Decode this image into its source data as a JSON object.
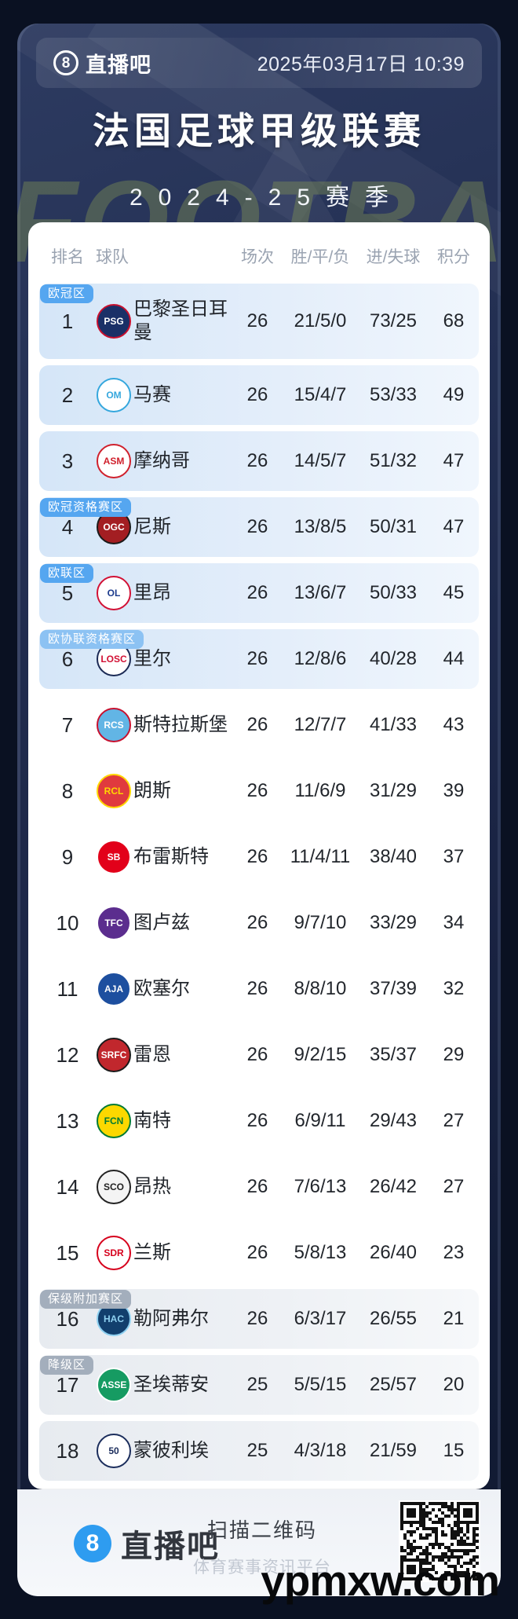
{
  "header": {
    "brand": "直播吧",
    "date": "2025年03月17日 10:39"
  },
  "title": "法国足球甲级联赛",
  "subtitle": "2024-25赛季",
  "decor": {
    "football": "FOOTBALL"
  },
  "site_watermark": "ypmxw.com",
  "colors": {
    "zone_blue": "#55a6f0",
    "zone_lightblue": "#8cc2f3",
    "zone_gray": "#a3aebc",
    "row_blue_tint": "#d5e6f8",
    "row_gray_tint": "#e7ebf0",
    "footer_brand_blue": "#2e9cf0"
  },
  "table": {
    "columns": [
      "排名",
      "球队",
      "场次",
      "胜/平/负",
      "进/失球",
      "积分"
    ],
    "rows": [
      {
        "rank": "1",
        "team": "巴黎圣日耳曼",
        "played": "26",
        "wdl": "21/5/0",
        "goals": "73/25",
        "points": "68",
        "zone": "欧冠区",
        "zone_style": "blue",
        "tint": "blue",
        "tall": true,
        "logo": {
          "text": "PSG",
          "bg": "#1a3067",
          "fg": "#ffffff",
          "ring": "#c8102e"
        }
      },
      {
        "rank": "2",
        "team": "马赛",
        "played": "26",
        "wdl": "15/4/7",
        "goals": "53/33",
        "points": "49",
        "zone": "",
        "zone_style": "",
        "tint": "blue",
        "tall": false,
        "logo": {
          "text": "OM",
          "bg": "#ffffff",
          "fg": "#35a7dd",
          "ring": "#35a7dd"
        }
      },
      {
        "rank": "3",
        "team": "摩纳哥",
        "played": "26",
        "wdl": "14/5/7",
        "goals": "51/32",
        "points": "47",
        "zone": "",
        "zone_style": "",
        "tint": "blue",
        "tall": false,
        "logo": {
          "text": "ASM",
          "bg": "#ffffff",
          "fg": "#d0202c",
          "ring": "#d0202c"
        }
      },
      {
        "rank": "4",
        "team": "尼斯",
        "played": "26",
        "wdl": "13/8/5",
        "goals": "50/31",
        "points": "47",
        "zone": "欧冠资格赛区",
        "zone_style": "blue",
        "tint": "blue",
        "tall": false,
        "logo": {
          "text": "OGC",
          "bg": "#a31e22",
          "fg": "#ffffff",
          "ring": "#1a1a1a"
        }
      },
      {
        "rank": "5",
        "team": "里昂",
        "played": "26",
        "wdl": "13/6/7",
        "goals": "50/33",
        "points": "45",
        "zone": "欧联区",
        "zone_style": "blue",
        "tint": "blue",
        "tall": false,
        "logo": {
          "text": "OL",
          "bg": "#ffffff",
          "fg": "#1b3a8c",
          "ring": "#d21034"
        }
      },
      {
        "rank": "6",
        "team": "里尔",
        "played": "26",
        "wdl": "12/8/6",
        "goals": "40/28",
        "points": "44",
        "zone": "欧协联资格赛区",
        "zone_style": "lightblue",
        "tint": "blue",
        "tall": false,
        "logo": {
          "text": "LOSC",
          "bg": "#ffffff",
          "fg": "#d21034",
          "ring": "#1b2a55"
        }
      },
      {
        "rank": "7",
        "team": "斯特拉斯堡",
        "played": "26",
        "wdl": "12/7/7",
        "goals": "41/33",
        "points": "43",
        "zone": "",
        "zone_style": "",
        "tint": "white",
        "tall": false,
        "logo": {
          "text": "RCS",
          "bg": "#62b5e5",
          "fg": "#ffffff",
          "ring": "#c8102e"
        }
      },
      {
        "rank": "8",
        "team": "朗斯",
        "played": "26",
        "wdl": "11/6/9",
        "goals": "31/29",
        "points": "39",
        "zone": "",
        "zone_style": "",
        "tint": "white",
        "tall": false,
        "logo": {
          "text": "RCL",
          "bg": "#e03a3e",
          "fg": "#ffd700",
          "ring": "#ffd700"
        }
      },
      {
        "rank": "9",
        "team": "布雷斯特",
        "played": "26",
        "wdl": "11/4/11",
        "goals": "38/40",
        "points": "37",
        "zone": "",
        "zone_style": "",
        "tint": "white",
        "tall": false,
        "logo": {
          "text": "SB",
          "bg": "#e2001a",
          "fg": "#ffffff",
          "ring": "#ffffff"
        }
      },
      {
        "rank": "10",
        "team": "图卢兹",
        "played": "26",
        "wdl": "9/7/10",
        "goals": "33/29",
        "points": "34",
        "zone": "",
        "zone_style": "",
        "tint": "white",
        "tall": false,
        "logo": {
          "text": "TFC",
          "bg": "#5b2d8e",
          "fg": "#ffffff",
          "ring": "#ffffff"
        }
      },
      {
        "rank": "11",
        "team": "欧塞尔",
        "played": "26",
        "wdl": "8/8/10",
        "goals": "37/39",
        "points": "32",
        "zone": "",
        "zone_style": "",
        "tint": "white",
        "tall": false,
        "logo": {
          "text": "AJA",
          "bg": "#1d4f9f",
          "fg": "#ffffff",
          "ring": "#ffffff"
        }
      },
      {
        "rank": "12",
        "team": "雷恩",
        "played": "26",
        "wdl": "9/2/15",
        "goals": "35/37",
        "points": "29",
        "zone": "",
        "zone_style": "",
        "tint": "white",
        "tall": false,
        "logo": {
          "text": "SRFC",
          "bg": "#c1272d",
          "fg": "#ffffff",
          "ring": "#1a1a1a"
        }
      },
      {
        "rank": "13",
        "team": "南特",
        "played": "26",
        "wdl": "6/9/11",
        "goals": "29/43",
        "points": "27",
        "zone": "",
        "zone_style": "",
        "tint": "white",
        "tall": false,
        "logo": {
          "text": "FCN",
          "bg": "#fcd800",
          "fg": "#007a33",
          "ring": "#007a33"
        }
      },
      {
        "rank": "14",
        "team": "昂热",
        "played": "26",
        "wdl": "7/6/13",
        "goals": "26/42",
        "points": "27",
        "zone": "",
        "zone_style": "",
        "tint": "white",
        "tall": false,
        "logo": {
          "text": "SCO",
          "bg": "#f4f4f4",
          "fg": "#222222",
          "ring": "#222222"
        }
      },
      {
        "rank": "15",
        "team": "兰斯",
        "played": "26",
        "wdl": "5/8/13",
        "goals": "26/40",
        "points": "23",
        "zone": "",
        "zone_style": "",
        "tint": "white",
        "tall": false,
        "logo": {
          "text": "SDR",
          "bg": "#ffffff",
          "fg": "#d6001c",
          "ring": "#d6001c"
        }
      },
      {
        "rank": "16",
        "team": "勒阿弗尔",
        "played": "26",
        "wdl": "6/3/17",
        "goals": "26/55",
        "points": "21",
        "zone": "保级附加赛区",
        "zone_style": "gray",
        "tint": "gray",
        "tall": false,
        "logo": {
          "text": "HAC",
          "bg": "#123f6d",
          "fg": "#8ed0f0",
          "ring": "#8ed0f0"
        }
      },
      {
        "rank": "17",
        "team": "圣埃蒂安",
        "played": "25",
        "wdl": "5/5/15",
        "goals": "25/57",
        "points": "20",
        "zone": "降级区",
        "zone_style": "gray",
        "tint": "gray",
        "tall": false,
        "logo": {
          "text": "ASSE",
          "bg": "#169b62",
          "fg": "#ffffff",
          "ring": "#ffffff"
        }
      },
      {
        "rank": "18",
        "team": "蒙彼利埃",
        "played": "25",
        "wdl": "4/3/18",
        "goals": "21/59",
        "points": "15",
        "zone": "",
        "zone_style": "",
        "tint": "gray",
        "tall": false,
        "logo": {
          "text": "50",
          "bg": "#ffffff",
          "fg": "#1b2d5c",
          "ring": "#1b2d5c"
        }
      }
    ]
  },
  "footer": {
    "brand": "直播吧",
    "qr_title": "扫描二维码",
    "qr_subtitle": "体育赛事资讯平台"
  }
}
